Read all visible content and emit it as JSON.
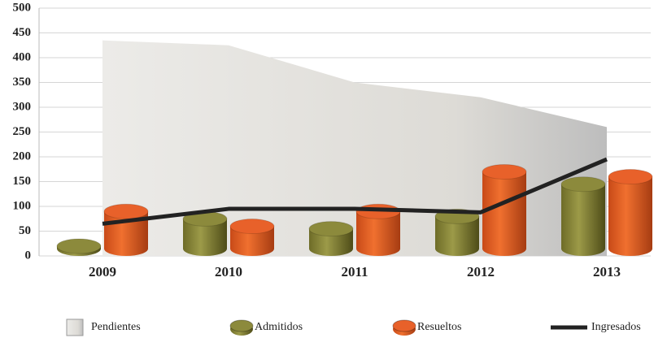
{
  "chart_data": {
    "type": "bar",
    "categories": [
      "2009",
      "2010",
      "2011",
      "2012",
      "2013"
    ],
    "series": [
      {
        "name": "Pendientes",
        "type": "area",
        "color": "#d9d7d3",
        "values": [
          435,
          425,
          350,
          320,
          260
        ]
      },
      {
        "name": "Admitidos",
        "type": "bar",
        "color": "#8c8a3c",
        "values": [
          5,
          60,
          40,
          65,
          130
        ]
      },
      {
        "name": "Resueltos",
        "type": "bar",
        "color": "#e8612a",
        "values": [
          75,
          45,
          75,
          155,
          145
        ]
      },
      {
        "name": "Ingresados",
        "type": "line",
        "color": "#222222",
        "values": [
          65,
          95,
          95,
          88,
          195
        ]
      }
    ],
    "ylim": [
      0,
      500
    ],
    "yticks": [
      0,
      50,
      100,
      150,
      200,
      250,
      300,
      350,
      400,
      450,
      500
    ],
    "grid": true,
    "legend": "bottom"
  }
}
